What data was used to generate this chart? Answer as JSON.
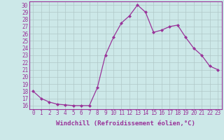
{
  "x": [
    0,
    1,
    2,
    3,
    4,
    5,
    6,
    7,
    8,
    9,
    10,
    11,
    12,
    13,
    14,
    15,
    16,
    17,
    18,
    19,
    20,
    21,
    22,
    23
  ],
  "y": [
    18,
    17,
    16.5,
    16.2,
    16.1,
    16.0,
    16.0,
    16.0,
    18.5,
    23.0,
    25.5,
    27.5,
    28.5,
    30.0,
    29.0,
    26.2,
    26.5,
    27.0,
    27.2,
    25.5,
    24.0,
    23.0,
    21.5,
    21.0
  ],
  "line_color": "#993399",
  "marker": "D",
  "marker_size": 2.5,
  "grid_color": "#b0c8c8",
  "xlabel": "Windchill (Refroidissement éolien,°C)",
  "xlabel_fontsize": 6.5,
  "ylim": [
    15.5,
    30.5
  ],
  "xlim": [
    -0.5,
    23.5
  ],
  "yticks": [
    16,
    17,
    18,
    19,
    20,
    21,
    22,
    23,
    24,
    25,
    26,
    27,
    28,
    29,
    30
  ],
  "xticks": [
    0,
    1,
    2,
    3,
    4,
    5,
    6,
    7,
    8,
    9,
    10,
    11,
    12,
    13,
    14,
    15,
    16,
    17,
    18,
    19,
    20,
    21,
    22,
    23
  ],
  "tick_fontsize": 5.5,
  "tick_color": "#993399",
  "spine_color": "#993399",
  "axis_bg": "#cce8e8"
}
